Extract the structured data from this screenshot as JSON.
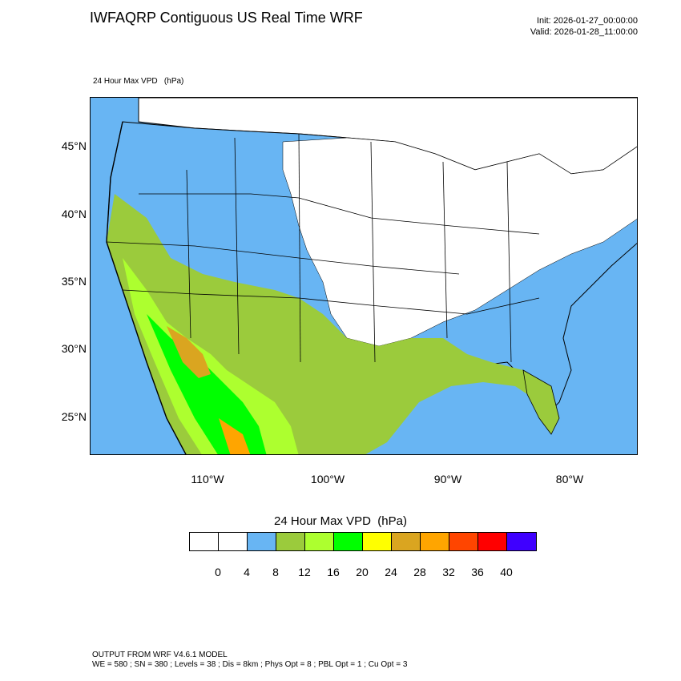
{
  "header": {
    "title": "IWFAQRP Contiguous US Real Time WRF",
    "init": "Init: 2026-01-27_00:00:00",
    "valid": "Valid: 2026-01-28_11:00:00"
  },
  "map": {
    "field_label": "24 Hour Max VPD   (hPa)",
    "lat_labels": [
      "45°N",
      "40°N",
      "35°N",
      "30°N",
      "25°N"
    ],
    "lon_labels": [
      "110°W",
      "100°W",
      "90°W",
      "80°W"
    ],
    "colors": {
      "ocean": "#68b5f3",
      "land_low": "#ffffff",
      "blue": "#68b5f3",
      "olive": "#9bcb3c",
      "lime": "#adff2f",
      "green": "#00ff00",
      "yellow": "#ffff00",
      "tan": "#daa520",
      "orange": "#ffa500",
      "border": "#000000"
    }
  },
  "colorbar": {
    "title": "24 Hour Max VPD  (hPa)",
    "labels": [
      "0",
      "4",
      "8",
      "12",
      "16",
      "20",
      "24",
      "28",
      "32",
      "36",
      "40"
    ],
    "colors": [
      "#ffffff",
      "#ffffff",
      "#68b5f3",
      "#9bcb3c",
      "#adff2f",
      "#00ff00",
      "#ffff00",
      "#daa520",
      "#ffa500",
      "#ff4500",
      "#ff0000",
      "#3f00ff"
    ]
  },
  "footer": {
    "line1": "OUTPUT FROM WRF V4.6.1 MODEL",
    "line2": "WE = 580 ; SN = 380 ; Levels = 38 ; Dis = 8km ; Phys Opt = 8 ; PBL Opt = 1 ; Cu Opt = 3"
  }
}
